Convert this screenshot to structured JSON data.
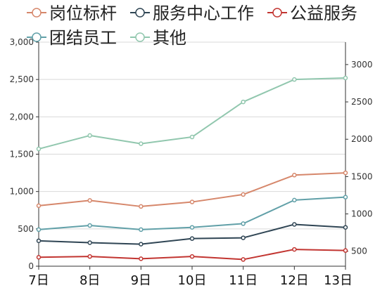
{
  "chart_data": {
    "type": "line",
    "categories": [
      "7日",
      "8日",
      "9日",
      "10日",
      "11日",
      "12日",
      "13日"
    ],
    "axes": {
      "left": {
        "range": [
          0,
          3000
        ],
        "ticks": [
          0,
          500,
          1000,
          1500,
          2000,
          2500,
          3000
        ],
        "tick_labels": [
          "0",
          "500",
          "1,000",
          "1,500",
          "2,000",
          "2,500",
          "3,000"
        ]
      },
      "right": {
        "range": [
          300,
          3300
        ],
        "ticks": [
          500,
          1000,
          1500,
          2000,
          2500,
          3000
        ],
        "tick_labels": [
          "500",
          "1000",
          "1500",
          "2000",
          "2500",
          "3000"
        ]
      }
    },
    "grid": true,
    "legend_position": "top",
    "series": [
      {
        "name": "岗位标杆",
        "color": "#d6876b",
        "axis": "left",
        "values": [
          810,
          880,
          800,
          860,
          960,
          1220,
          1250
        ]
      },
      {
        "name": "服务中心工作",
        "color": "#2f4554",
        "axis": "left",
        "values": [
          340,
          315,
          295,
          370,
          380,
          560,
          520
        ]
      },
      {
        "name": "公益服务",
        "color": "#c23531",
        "axis": "left",
        "values": [
          120,
          130,
          100,
          130,
          90,
          225,
          210
        ]
      },
      {
        "name": "团结员工",
        "color": "#61a0a8",
        "axis": "left",
        "values": [
          490,
          545,
          490,
          520,
          570,
          885,
          925
        ]
      },
      {
        "name": "其他",
        "color": "#91c7ae",
        "axis": "right",
        "values": [
          1870,
          2050,
          1940,
          2030,
          2500,
          2800,
          2820
        ]
      }
    ]
  }
}
